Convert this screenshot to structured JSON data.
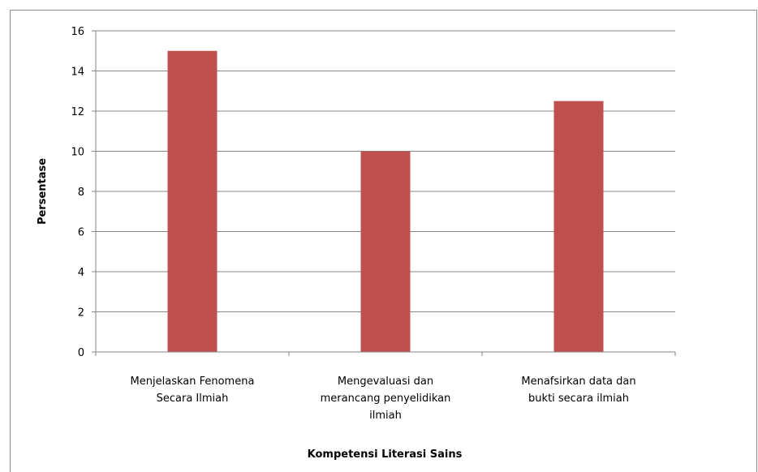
{
  "chart_data": {
    "type": "bar",
    "categories": [
      [
        "Menjelaskan Fenomena",
        "Secara Ilmiah"
      ],
      [
        "Mengevaluasi dan",
        "merancang penyelidikan",
        "ilmiah"
      ],
      [
        "Menafsirkan data dan",
        "bukti secara ilmiah"
      ]
    ],
    "values": [
      15,
      10,
      12.5
    ],
    "title": "",
    "xlabel": "Kompetensi Literasi Sains",
    "ylabel": "Persentase",
    "ylim": [
      0,
      16
    ],
    "yticks": [
      0,
      2,
      4,
      6,
      8,
      10,
      12,
      14,
      16
    ],
    "grid": true,
    "legend": "none",
    "bar_color": "#c0504d",
    "grid_color": "#868686"
  }
}
